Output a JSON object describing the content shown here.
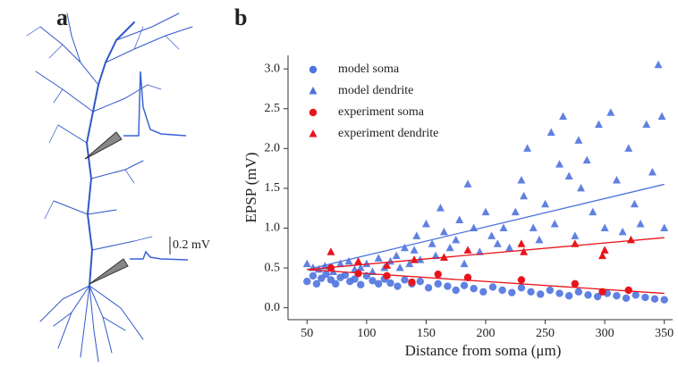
{
  "panel_labels": [
    "a",
    "b"
  ],
  "scale_bar_label": "0.2 mV",
  "chart_data": {
    "type": "scatter",
    "xlabel": "Distance from soma (μm)",
    "ylabel": "EPSP (mV)",
    "xlim": [
      34,
      357
    ],
    "ylim": [
      -0.15,
      3.17
    ],
    "xticks": [
      50,
      100,
      150,
      200,
      250,
      300,
      350
    ],
    "yticks": [
      {
        "value": 0,
        "label": "0.0"
      },
      {
        "value": 0.5,
        "label": "0.5"
      },
      {
        "value": 1,
        "label": "1.0"
      },
      {
        "value": 1.5,
        "label": "1.5"
      },
      {
        "value": 2,
        "label": "2.0"
      },
      {
        "value": 2.5,
        "label": "2.5"
      },
      {
        "value": 3,
        "label": "3.0"
      }
    ],
    "legend": "upper left",
    "series": [
      {
        "name": "model soma",
        "color": "#4e73df",
        "marker": "circle",
        "x": [
          50,
          55,
          58,
          62,
          66,
          70,
          74,
          78,
          82,
          86,
          90,
          95,
          100,
          105,
          110,
          115,
          120,
          126,
          132,
          138,
          145,
          152,
          160,
          168,
          175,
          182,
          190,
          198,
          206,
          214,
          222,
          230,
          238,
          246,
          254,
          262,
          270,
          278,
          286,
          294,
          302,
          310,
          318,
          326,
          334,
          342,
          350
        ],
        "values": [
          0.33,
          0.4,
          0.3,
          0.37,
          0.42,
          0.35,
          0.3,
          0.38,
          0.41,
          0.33,
          0.36,
          0.29,
          0.4,
          0.34,
          0.3,
          0.36,
          0.31,
          0.27,
          0.35,
          0.3,
          0.33,
          0.25,
          0.3,
          0.27,
          0.22,
          0.28,
          0.24,
          0.2,
          0.26,
          0.22,
          0.19,
          0.25,
          0.2,
          0.17,
          0.22,
          0.18,
          0.15,
          0.2,
          0.16,
          0.14,
          0.18,
          0.15,
          0.12,
          0.16,
          0.13,
          0.11,
          0.1
        ]
      },
      {
        "name": "model dendrite",
        "color": "#4e73df",
        "marker": "triangle",
        "x": [
          50,
          55,
          60,
          65,
          72,
          78,
          85,
          90,
          95,
          100,
          105,
          110,
          115,
          120,
          125,
          128,
          132,
          136,
          140,
          142,
          145,
          150,
          155,
          158,
          162,
          165,
          170,
          175,
          178,
          182,
          185,
          190,
          195,
          200,
          205,
          210,
          215,
          220,
          225,
          230,
          232,
          235,
          240,
          245,
          250,
          255,
          258,
          262,
          265,
          270,
          275,
          278,
          280,
          285,
          290,
          295,
          300,
          305,
          310,
          315,
          320,
          325,
          330,
          335,
          340,
          345,
          348,
          350
        ],
        "values": [
          0.55,
          0.5,
          0.48,
          0.52,
          0.45,
          0.55,
          0.58,
          0.48,
          0.5,
          0.55,
          0.45,
          0.62,
          0.5,
          0.58,
          0.65,
          0.5,
          0.75,
          0.55,
          0.72,
          0.9,
          0.6,
          1.05,
          0.8,
          0.65,
          1.25,
          0.95,
          0.75,
          0.85,
          1.1,
          0.55,
          1.55,
          1.0,
          0.7,
          1.2,
          0.9,
          0.8,
          1.0,
          0.75,
          1.2,
          1.6,
          1.4,
          2.0,
          1.0,
          0.85,
          1.3,
          2.2,
          1.05,
          1.8,
          2.4,
          1.65,
          0.9,
          2.1,
          1.5,
          1.85,
          1.2,
          2.3,
          1.0,
          2.45,
          1.6,
          0.95,
          2.0,
          1.3,
          1.05,
          2.3,
          1.7,
          3.05,
          2.4,
          1.0
        ]
      },
      {
        "name": "experiment soma",
        "color": "#e8141b",
        "marker": "circle",
        "x": [
          70,
          93,
          117,
          138,
          160,
          185,
          230,
          275,
          298,
          320
        ],
        "values": [
          0.5,
          0.43,
          0.4,
          0.32,
          0.42,
          0.38,
          0.35,
          0.3,
          0.2,
          0.22
        ]
      },
      {
        "name": "experiment dendrite",
        "color": "#e8141b",
        "marker": "triangle",
        "x": [
          70,
          93,
          117,
          140,
          165,
          185,
          230,
          232,
          275,
          298,
          300,
          322
        ],
        "values": [
          0.7,
          0.58,
          0.53,
          0.6,
          0.63,
          0.72,
          0.8,
          0.7,
          0.8,
          0.65,
          0.72,
          0.85
        ]
      }
    ],
    "fit_lines": [
      {
        "color": "#4e73df",
        "x": [
          50,
          350
        ],
        "values": [
          0.48,
          1.55
        ]
      },
      {
        "color": "#e8141b",
        "x": [
          50,
          350
        ],
        "values": [
          0.48,
          0.88
        ]
      },
      {
        "color": "#e8141b",
        "x": [
          50,
          350
        ],
        "values": [
          0.48,
          0.18
        ]
      }
    ]
  }
}
